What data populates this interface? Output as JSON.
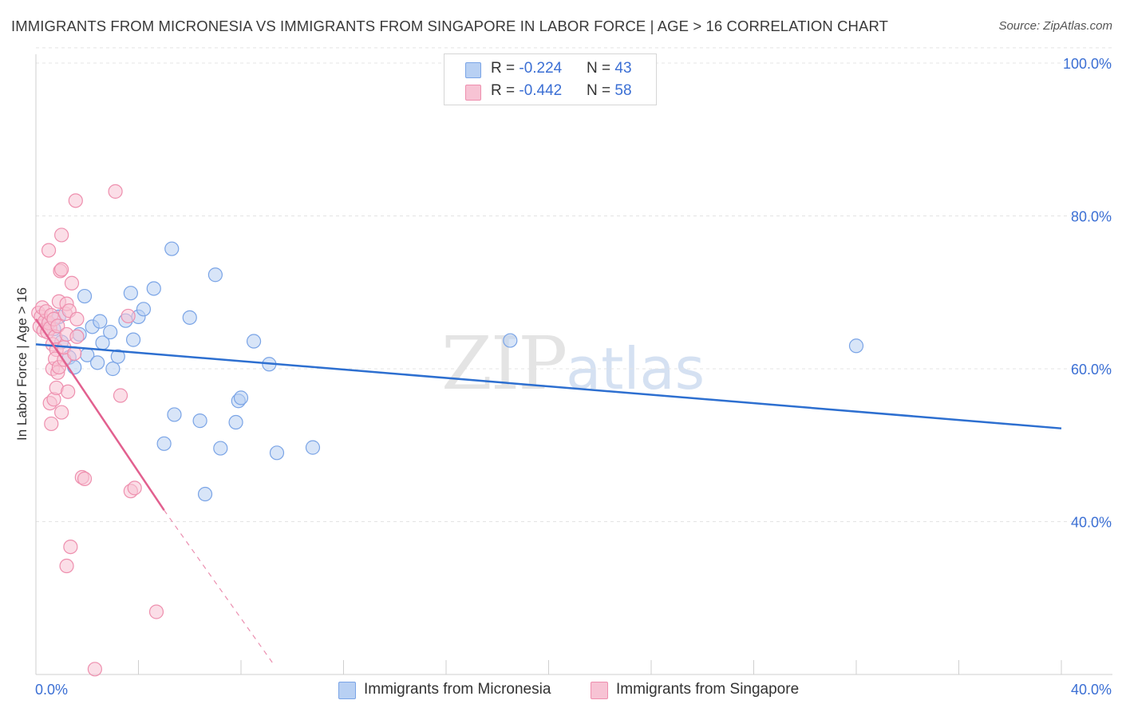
{
  "header": {
    "title": "IMMIGRANTS FROM MICRONESIA VS IMMIGRANTS FROM SINGAPORE IN LABOR FORCE | AGE > 16 CORRELATION CHART",
    "source": "Source: ZipAtlas.com"
  },
  "watermark": {
    "zip": "ZIP",
    "atlas": "atlas"
  },
  "legend_top": [
    {
      "r_label": "R = ",
      "r_value": "-0.224",
      "n_label": "N = ",
      "n_value": "43"
    },
    {
      "r_label": "R = ",
      "r_value": "-0.442",
      "n_label": "N = ",
      "n_value": "58"
    }
  ],
  "legend_bottom": [
    {
      "label": "Immigrants from Micronesia"
    },
    {
      "label": "Immigrants from Singapore"
    }
  ],
  "colors": {
    "micronesia_fill": "#b8d0f3",
    "micronesia_stroke": "#7aa4e6",
    "micronesia_line": "#2d6fd0",
    "singapore_fill": "#f7c3d4",
    "singapore_stroke": "#ee8fae",
    "singapore_line": "#e2608f",
    "axis_text": "#3b6fd4",
    "grid": "#e4e4e4"
  },
  "chart_data": {
    "type": "scatter",
    "title": "IMMIGRANTS FROM MICRONESIA VS IMMIGRANTS FROM SINGAPORE IN LABOR FORCE | AGE > 16 CORRELATION CHART",
    "xlabel": "",
    "ylabel": "In Labor Force | Age > 16",
    "xlim": [
      0,
      40
    ],
    "ylim": [
      20,
      102
    ],
    "x_tick_labels": [
      "0.0%",
      "40.0%"
    ],
    "x_ticks": [
      0,
      4,
      8,
      12,
      16,
      20,
      24,
      28,
      32,
      36,
      40
    ],
    "y_ticks": [
      40,
      60,
      80,
      100
    ],
    "y_tick_labels": [
      "40.0%",
      "60.0%",
      "80.0%",
      "100.0%"
    ],
    "grid": true,
    "legend_position": "top-center",
    "series": [
      {
        "name": "Immigrants from Micronesia",
        "r": -0.224,
        "n": 43,
        "trend": {
          "x": [
            0,
            40
          ],
          "y": [
            63.2,
            52.2
          ]
        },
        "points": [
          [
            0.5,
            66.0
          ],
          [
            0.7,
            65.2
          ],
          [
            0.9,
            66.8
          ],
          [
            1.0,
            63.5
          ],
          [
            1.3,
            61.5
          ],
          [
            1.5,
            60.2
          ],
          [
            1.7,
            64.5
          ],
          [
            1.9,
            69.5
          ],
          [
            2.0,
            61.8
          ],
          [
            2.2,
            65.5
          ],
          [
            2.4,
            60.8
          ],
          [
            2.5,
            66.2
          ],
          [
            2.6,
            63.4
          ],
          [
            2.9,
            64.8
          ],
          [
            3.0,
            60.0
          ],
          [
            3.2,
            61.6
          ],
          [
            3.5,
            66.3
          ],
          [
            3.7,
            69.9
          ],
          [
            3.8,
            63.8
          ],
          [
            4.0,
            66.8
          ],
          [
            4.2,
            67.8
          ],
          [
            4.6,
            70.5
          ],
          [
            5.0,
            50.2
          ],
          [
            5.3,
            75.7
          ],
          [
            5.4,
            54.0
          ],
          [
            6.0,
            66.7
          ],
          [
            6.4,
            53.2
          ],
          [
            6.6,
            43.6
          ],
          [
            7.0,
            72.3
          ],
          [
            7.2,
            49.6
          ],
          [
            7.8,
            53.0
          ],
          [
            7.9,
            55.8
          ],
          [
            8.0,
            56.2
          ],
          [
            8.5,
            63.6
          ],
          [
            9.1,
            60.6
          ],
          [
            9.4,
            49.0
          ],
          [
            10.8,
            49.7
          ],
          [
            18.5,
            63.7
          ],
          [
            32.0,
            63.0
          ]
        ]
      },
      {
        "name": "Immigrants from Singapore",
        "r": -0.442,
        "n": 58,
        "trend": {
          "x": [
            0,
            5.0
          ],
          "y": [
            66.5,
            41.5
          ]
        },
        "trend_dashed": {
          "x": [
            5.0,
            9.3
          ],
          "y": [
            41.5,
            21.2
          ]
        },
        "points": [
          [
            0.1,
            67.3
          ],
          [
            0.15,
            65.5
          ],
          [
            0.2,
            66.8
          ],
          [
            0.25,
            68.0
          ],
          [
            0.3,
            65.0
          ],
          [
            0.35,
            66.2
          ],
          [
            0.4,
            67.5
          ],
          [
            0.45,
            64.8
          ],
          [
            0.5,
            66.0
          ],
          [
            0.55,
            65.3
          ],
          [
            0.6,
            67.0
          ],
          [
            0.65,
            63.2
          ],
          [
            0.7,
            66.5
          ],
          [
            0.75,
            64.2
          ],
          [
            0.8,
            62.5
          ],
          [
            0.85,
            65.6
          ],
          [
            0.5,
            75.5
          ],
          [
            0.55,
            55.5
          ],
          [
            0.6,
            52.8
          ],
          [
            0.65,
            60.0
          ],
          [
            0.7,
            56.0
          ],
          [
            0.75,
            61.3
          ],
          [
            0.8,
            57.5
          ],
          [
            0.85,
            59.5
          ],
          [
            0.9,
            60.2
          ],
          [
            0.9,
            68.8
          ],
          [
            0.95,
            72.8
          ],
          [
            1.0,
            73.0
          ],
          [
            1.0,
            54.3
          ],
          [
            1.1,
            61.2
          ],
          [
            1.1,
            62.8
          ],
          [
            1.15,
            67.2
          ],
          [
            1.2,
            64.5
          ],
          [
            1.2,
            68.5
          ],
          [
            1.0,
            77.5
          ],
          [
            1.25,
            57.0
          ],
          [
            1.3,
            67.6
          ],
          [
            1.2,
            34.2
          ],
          [
            1.35,
            36.7
          ],
          [
            1.4,
            71.2
          ],
          [
            1.5,
            62.0
          ],
          [
            1.55,
            82.0
          ],
          [
            1.6,
            64.2
          ],
          [
            1.6,
            66.5
          ],
          [
            1.8,
            45.8
          ],
          [
            1.9,
            45.6
          ],
          [
            2.3,
            20.7
          ],
          [
            3.1,
            83.2
          ],
          [
            3.3,
            56.5
          ],
          [
            3.6,
            66.9
          ],
          [
            3.7,
            44.0
          ],
          [
            3.85,
            44.4
          ],
          [
            4.7,
            28.2
          ]
        ]
      }
    ]
  }
}
